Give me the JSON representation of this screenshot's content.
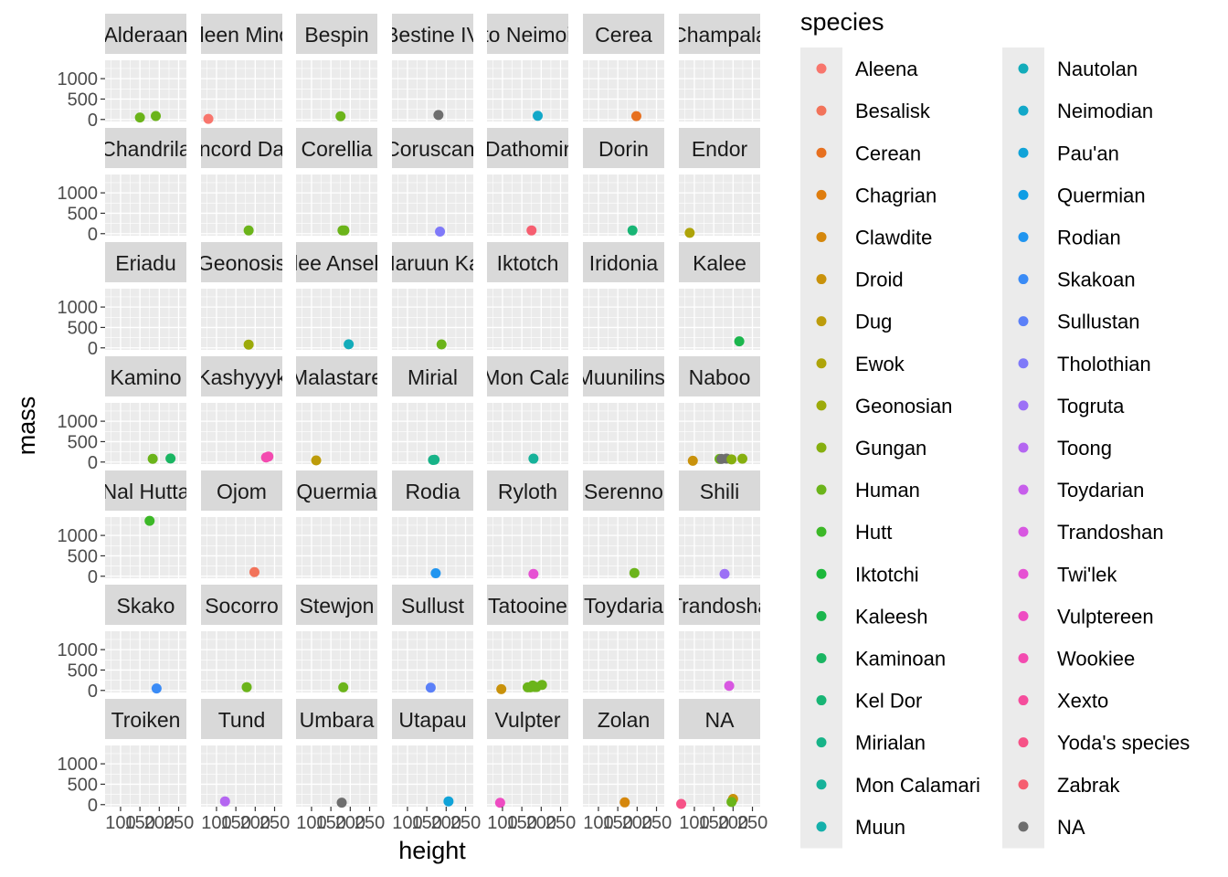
{
  "chart_data": {
    "type": "scatter",
    "facet_by": "homeworld",
    "xlabel": "height",
    "ylabel": "mass",
    "x_ticks": [
      100,
      150,
      200,
      250
    ],
    "y_ticks": [
      0,
      500,
      1000
    ],
    "xlim": [
      60,
      270
    ],
    "ylim": [
      -50,
      1450
    ],
    "legend_title": "species",
    "legend_position": "right",
    "grid": true,
    "species": [
      {
        "name": "Aleena",
        "color": "#F8766D"
      },
      {
        "name": "Besalisk",
        "color": "#F2735A"
      },
      {
        "name": "Cerean",
        "color": "#E7701F"
      },
      {
        "name": "Chagrian",
        "color": "#DF7D0E"
      },
      {
        "name": "Clawdite",
        "color": "#D5870C"
      },
      {
        "name": "Droid",
        "color": "#C9920B"
      },
      {
        "name": "Dug",
        "color": "#BD9C0B"
      },
      {
        "name": "Ewok",
        "color": "#AEA409"
      },
      {
        "name": "Geonosian",
        "color": "#9CAA0A"
      },
      {
        "name": "Gungan",
        "color": "#86AF0F"
      },
      {
        "name": "Human",
        "color": "#6BB41A"
      },
      {
        "name": "Hutt",
        "color": "#3CB827"
      },
      {
        "name": "Iktotchi",
        "color": "#1CB83A"
      },
      {
        "name": "Kaleesh",
        "color": "#1BB64D"
      },
      {
        "name": "Kaminoan",
        "color": "#1AB562"
      },
      {
        "name": "Kel Dor",
        "color": "#18B575"
      },
      {
        "name": "Mirialan",
        "color": "#17B388"
      },
      {
        "name": "Mon Calamari",
        "color": "#16B29A"
      },
      {
        "name": "Muun",
        "color": "#15B0AB"
      },
      {
        "name": "Nautolan",
        "color": "#13ACBA"
      },
      {
        "name": "Neimodian",
        "color": "#12A8C9"
      },
      {
        "name": "Pau'an",
        "color": "#10A3D8"
      },
      {
        "name": "Quermian",
        "color": "#0E9DE5"
      },
      {
        "name": "Rodian",
        "color": "#2095F0"
      },
      {
        "name": "Skakoan",
        "color": "#3A8BF6"
      },
      {
        "name": "Sullustan",
        "color": "#5B80F8"
      },
      {
        "name": "Tholothian",
        "color": "#7F79F9"
      },
      {
        "name": "Togruta",
        "color": "#9C70F6"
      },
      {
        "name": "Toong",
        "color": "#B466F1"
      },
      {
        "name": "Toydarian",
        "color": "#C75EEB"
      },
      {
        "name": "Trandoshan",
        "color": "#D857E1"
      },
      {
        "name": "Twi'lek",
        "color": "#E650D3"
      },
      {
        "name": "Vulptereen",
        "color": "#EE4CC2"
      },
      {
        "name": "Wookiee",
        "color": "#F34BB0"
      },
      {
        "name": "Xexto",
        "color": "#F54D9C"
      },
      {
        "name": "Yoda's species",
        "color": "#F65287"
      },
      {
        "name": "Zabrak",
        "color": "#F65E70"
      },
      {
        "name": "NA",
        "color": "#6E6E6E"
      }
    ],
    "facets": [
      {
        "label": "Alderaan",
        "points": [
          {
            "x": 150,
            "y": 49,
            "s": "Human"
          },
          {
            "x": 191,
            "y": 84,
            "s": "Human"
          }
        ]
      },
      {
        "label": "Aleen Minor",
        "points": [
          {
            "x": 79,
            "y": 15,
            "s": "Aleena"
          }
        ]
      },
      {
        "label": "Bespin",
        "points": [
          {
            "x": 175,
            "y": 79,
            "s": "Human"
          }
        ]
      },
      {
        "label": "Bestine IV",
        "points": [
          {
            "x": 180,
            "y": 110,
            "s": "NA"
          }
        ]
      },
      {
        "label": "Cato Neimoidia",
        "points": [
          {
            "x": 191,
            "y": 90,
            "s": "Neimodian"
          }
        ]
      },
      {
        "label": "Cerea",
        "points": [
          {
            "x": 198,
            "y": 82,
            "s": "Cerean"
          }
        ]
      },
      {
        "label": "Champala",
        "points": []
      },
      {
        "label": "Chandrila",
        "points": []
      },
      {
        "label": "Concord Dawn",
        "points": [
          {
            "x": 183,
            "y": 79,
            "s": "Human"
          }
        ]
      },
      {
        "label": "Corellia",
        "points": [
          {
            "x": 180,
            "y": 80,
            "s": "Human"
          },
          {
            "x": 185,
            "y": 80,
            "s": "Human"
          }
        ]
      },
      {
        "label": "Coruscant",
        "points": [
          {
            "x": 184,
            "y": 50,
            "s": "Tholothian"
          }
        ]
      },
      {
        "label": "Dathomir",
        "points": [
          {
            "x": 175,
            "y": 80,
            "s": "Zabrak"
          }
        ]
      },
      {
        "label": "Dorin",
        "points": [
          {
            "x": 188,
            "y": 80,
            "s": "Kel Dor"
          }
        ]
      },
      {
        "label": "Endor",
        "points": [
          {
            "x": 88,
            "y": 20,
            "s": "Ewok"
          }
        ]
      },
      {
        "label": "Eriadu",
        "points": []
      },
      {
        "label": "Geonosis",
        "points": [
          {
            "x": 183,
            "y": 80,
            "s": "Geonosian"
          }
        ]
      },
      {
        "label": "Glee Anselm",
        "points": [
          {
            "x": 196,
            "y": 87,
            "s": "Nautolan"
          }
        ]
      },
      {
        "label": "Haruun Kal",
        "points": [
          {
            "x": 188,
            "y": 84,
            "s": "Human"
          }
        ]
      },
      {
        "label": "Iktotch",
        "points": []
      },
      {
        "label": "Iridonia",
        "points": []
      },
      {
        "label": "Kalee",
        "points": [
          {
            "x": 216,
            "y": 159,
            "s": "Kaleesh"
          }
        ]
      },
      {
        "label": "Kamino",
        "points": [
          {
            "x": 183,
            "y": 78,
            "s": "Human"
          },
          {
            "x": 229,
            "y": 88,
            "s": "Kaminoan"
          }
        ]
      },
      {
        "label": "Kashyyyk",
        "points": [
          {
            "x": 228,
            "y": 112,
            "s": "Wookiee"
          },
          {
            "x": 234,
            "y": 136,
            "s": "Wookiee"
          }
        ]
      },
      {
        "label": "Malastare",
        "points": [
          {
            "x": 112,
            "y": 40,
            "s": "Dug"
          }
        ]
      },
      {
        "label": "Mirial",
        "points": [
          {
            "x": 166,
            "y": 50,
            "s": "Mirialan"
          },
          {
            "x": 170,
            "y": 56,
            "s": "Mirialan"
          }
        ]
      },
      {
        "label": "Mon Cala",
        "points": [
          {
            "x": 180,
            "y": 83,
            "s": "Mon Calamari"
          }
        ]
      },
      {
        "label": "Muunilinst",
        "points": []
      },
      {
        "label": "Naboo",
        "points": [
          {
            "x": 96,
            "y": 32,
            "s": "Droid"
          },
          {
            "x": 165,
            "y": 75,
            "s": "Human"
          },
          {
            "x": 170,
            "y": 77,
            "s": "NA"
          },
          {
            "x": 183,
            "y": 84,
            "s": "NA"
          },
          {
            "x": 196,
            "y": 66,
            "s": "Gungan"
          },
          {
            "x": 224,
            "y": 82,
            "s": "Gungan"
          }
        ]
      },
      {
        "label": "Nal Hutta",
        "points": [
          {
            "x": 175,
            "y": 1358,
            "s": "Hutt"
          }
        ]
      },
      {
        "label": "Ojom",
        "points": [
          {
            "x": 198,
            "y": 102,
            "s": "Besalisk"
          }
        ]
      },
      {
        "label": "Quermia",
        "points": []
      },
      {
        "label": "Rodia",
        "points": [
          {
            "x": 173,
            "y": 74,
            "s": "Rodian"
          }
        ]
      },
      {
        "label": "Ryloth",
        "points": [
          {
            "x": 180,
            "y": 55,
            "s": "Twi'lek"
          }
        ]
      },
      {
        "label": "Serenno",
        "points": [
          {
            "x": 193,
            "y": 80,
            "s": "Human"
          }
        ]
      },
      {
        "label": "Shili",
        "points": [
          {
            "x": 178,
            "y": 57,
            "s": "Togruta"
          }
        ]
      },
      {
        "label": "Skako",
        "points": [
          {
            "x": 193,
            "y": 48,
            "s": "Skakoan"
          }
        ]
      },
      {
        "label": "Socorro",
        "points": [
          {
            "x": 178,
            "y": 80,
            "s": "Human"
          }
        ]
      },
      {
        "label": "Stewjon",
        "points": [
          {
            "x": 182,
            "y": 77,
            "s": "Human"
          }
        ]
      },
      {
        "label": "Sullust",
        "points": [
          {
            "x": 160,
            "y": 68,
            "s": "Sullustan"
          }
        ]
      },
      {
        "label": "Tatooine",
        "points": [
          {
            "x": 97,
            "y": 32,
            "s": "Droid"
          },
          {
            "x": 165,
            "y": 75,
            "s": "Human"
          },
          {
            "x": 172,
            "y": 77,
            "s": "Human"
          },
          {
            "x": 178,
            "y": 120,
            "s": "Human"
          },
          {
            "x": 183,
            "y": 84,
            "s": "Human"
          },
          {
            "x": 188,
            "y": 84,
            "s": "Human"
          },
          {
            "x": 202,
            "y": 136,
            "s": "Human"
          }
        ]
      },
      {
        "label": "Toydaria",
        "points": []
      },
      {
        "label": "Trandosha",
        "points": [
          {
            "x": 190,
            "y": 113,
            "s": "Trandoshan"
          }
        ]
      },
      {
        "label": "Troiken",
        "points": []
      },
      {
        "label": "Tund",
        "points": [
          {
            "x": 122,
            "y": 80,
            "s": "Toong"
          }
        ]
      },
      {
        "label": "Umbara",
        "points": [
          {
            "x": 178,
            "y": 48,
            "s": "NA"
          }
        ]
      },
      {
        "label": "Utapau",
        "points": [
          {
            "x": 206,
            "y": 80,
            "s": "Pau'an"
          }
        ]
      },
      {
        "label": "Vulpter",
        "points": [
          {
            "x": 94,
            "y": 45,
            "s": "Vulptereen"
          }
        ]
      },
      {
        "label": "Zolan",
        "points": [
          {
            "x": 168,
            "y": 55,
            "s": "Clawdite"
          }
        ]
      },
      {
        "label": "NA",
        "points": [
          {
            "x": 66,
            "y": 17,
            "s": "Yoda's species"
          },
          {
            "x": 200,
            "y": 140,
            "s": "Droid"
          },
          {
            "x": 196,
            "y": 66,
            "s": "Human"
          }
        ]
      }
    ]
  }
}
